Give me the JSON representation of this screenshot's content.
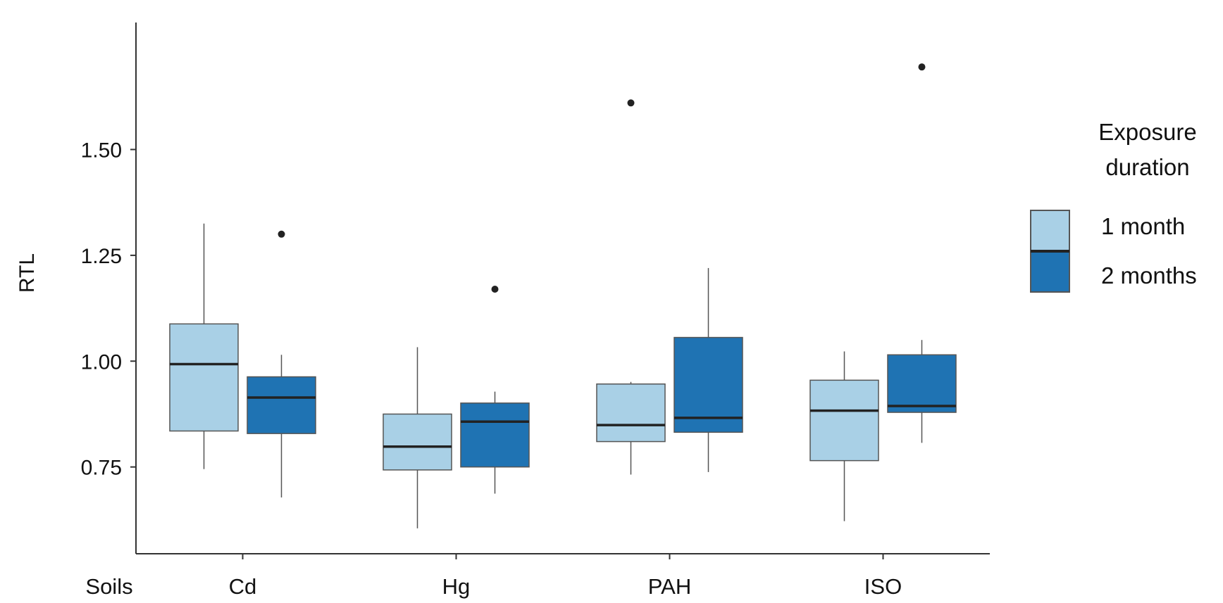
{
  "chart_data": {
    "type": "box",
    "ylabel": "RTL",
    "xlabel": "Soils",
    "ylim": [
      0.545,
      1.8
    ],
    "yticks": [
      0.75,
      1.0,
      1.25,
      1.5
    ],
    "ytick_labels": [
      "0.75",
      "1.00",
      "1.25",
      "1.50"
    ],
    "categories": [
      "Cd",
      "Hg",
      "PAH",
      "ISO"
    ],
    "legend": {
      "title": [
        "Exposure",
        "duration"
      ],
      "position": "right"
    },
    "series": [
      {
        "name": "1 month",
        "color": "#a9d0e6",
        "boxes": [
          {
            "whisker_low": 0.745,
            "q1": 0.835,
            "median": 0.993,
            "q3": 1.088,
            "whisker_high": 1.325,
            "outliers": []
          },
          {
            "whisker_low": 0.605,
            "q1": 0.743,
            "median": 0.798,
            "q3": 0.875,
            "whisker_high": 1.033,
            "outliers": []
          },
          {
            "whisker_low": 0.732,
            "q1": 0.81,
            "median": 0.849,
            "q3": 0.946,
            "whisker_high": 0.951,
            "outliers": [
              1.61
            ]
          },
          {
            "whisker_low": 0.622,
            "q1": 0.765,
            "median": 0.883,
            "q3": 0.955,
            "whisker_high": 1.023,
            "outliers": []
          }
        ]
      },
      {
        "name": "2 months",
        "color": "#1f73b3",
        "boxes": [
          {
            "whisker_low": 0.678,
            "q1": 0.829,
            "median": 0.914,
            "q3": 0.963,
            "whisker_high": 1.015,
            "outliers": [
              1.3
            ]
          },
          {
            "whisker_low": 0.687,
            "q1": 0.75,
            "median": 0.857,
            "q3": 0.901,
            "whisker_high": 0.928,
            "outliers": [
              1.17
            ]
          },
          {
            "whisker_low": 0.738,
            "q1": 0.832,
            "median": 0.866,
            "q3": 1.056,
            "whisker_high": 1.22,
            "outliers": []
          },
          {
            "whisker_low": 0.807,
            "q1": 0.879,
            "median": 0.894,
            "q3": 1.015,
            "whisker_high": 1.05,
            "outliers": [
              1.695
            ]
          }
        ]
      }
    ]
  }
}
